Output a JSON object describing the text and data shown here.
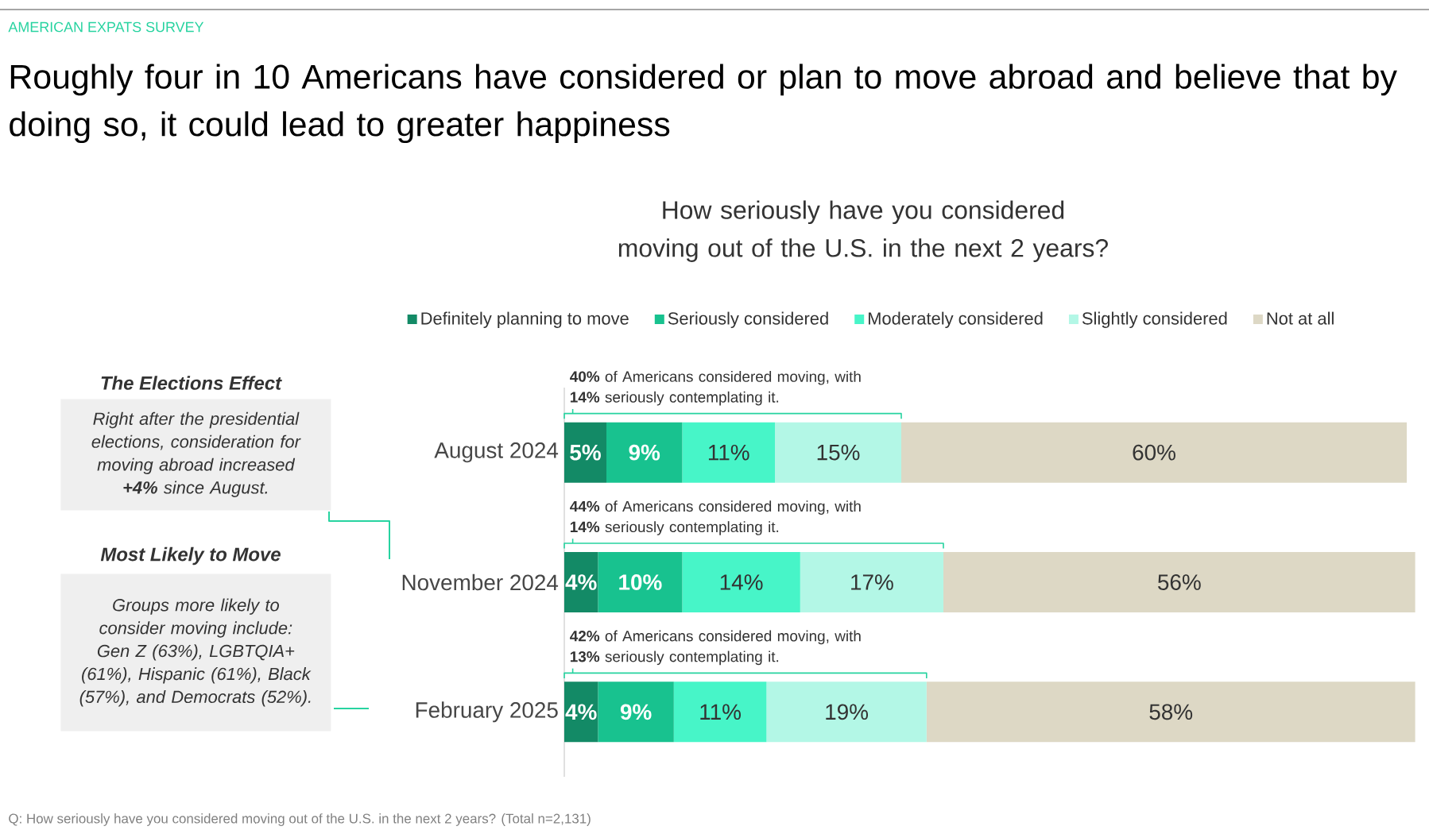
{
  "chart_data": {
    "type": "bar",
    "orientation": "horizontal",
    "stacked": true,
    "title": "Roughly four in 10 Americans have considered or plan to move abroad and believe that by doing so, it could lead to greater happiness",
    "subtitle": "How seriously have you considered moving out of the U.S. in the next 2 years?",
    "categories": [
      "August 2024",
      "November 2024",
      "February 2025"
    ],
    "series": [
      {
        "name": "Definitely planning to move",
        "color": "#138a66",
        "values": [
          5,
          4,
          4
        ],
        "value_labels": [
          "5%",
          "4%",
          "4%"
        ]
      },
      {
        "name": "Seriously considered",
        "color": "#18c28f",
        "values": [
          9,
          10,
          9
        ],
        "value_labels": [
          "9%",
          "10%",
          "9%"
        ]
      },
      {
        "name": "Moderately considered",
        "color": "#47f5c8",
        "values": [
          11,
          14,
          11
        ],
        "value_labels": [
          "11%",
          "14%",
          "11%"
        ]
      },
      {
        "name": "Slightly considered",
        "color": "#b3f7e6",
        "values": [
          15,
          17,
          19
        ],
        "value_labels": [
          "15%",
          "17%",
          "19%"
        ]
      },
      {
        "name": "Not at all",
        "color": "#ddd8c5",
        "values": [
          60,
          56,
          58
        ],
        "value_labels": [
          "60%",
          "56%",
          "58%"
        ]
      }
    ],
    "legend": "top",
    "annotations": [
      "AMERICAN EXPATS SURVEY",
      "**40%** of Americans considered moving, with **14%** seriously contemplating it.",
      "**44%** of Americans considered moving, with **14%** seriously contemplating it.",
      "**42%** of Americans considered moving, with **13%** seriously contemplating it.",
      "The Elections Effect",
      "Right after the presidential elections, consideration for moving abroad increased **+4%** since August.",
      "Most Likely to Move",
      "Groups more likely to consider moving include: Gen Z (63%), LGBTQIA+ (61%), Hispanic (61%), Black (57%), and Democrats (52%).",
      "Q: How seriously have you considered moving out of the U.S. in the next 2 years? (Total n=2,131)"
    ]
  }
}
